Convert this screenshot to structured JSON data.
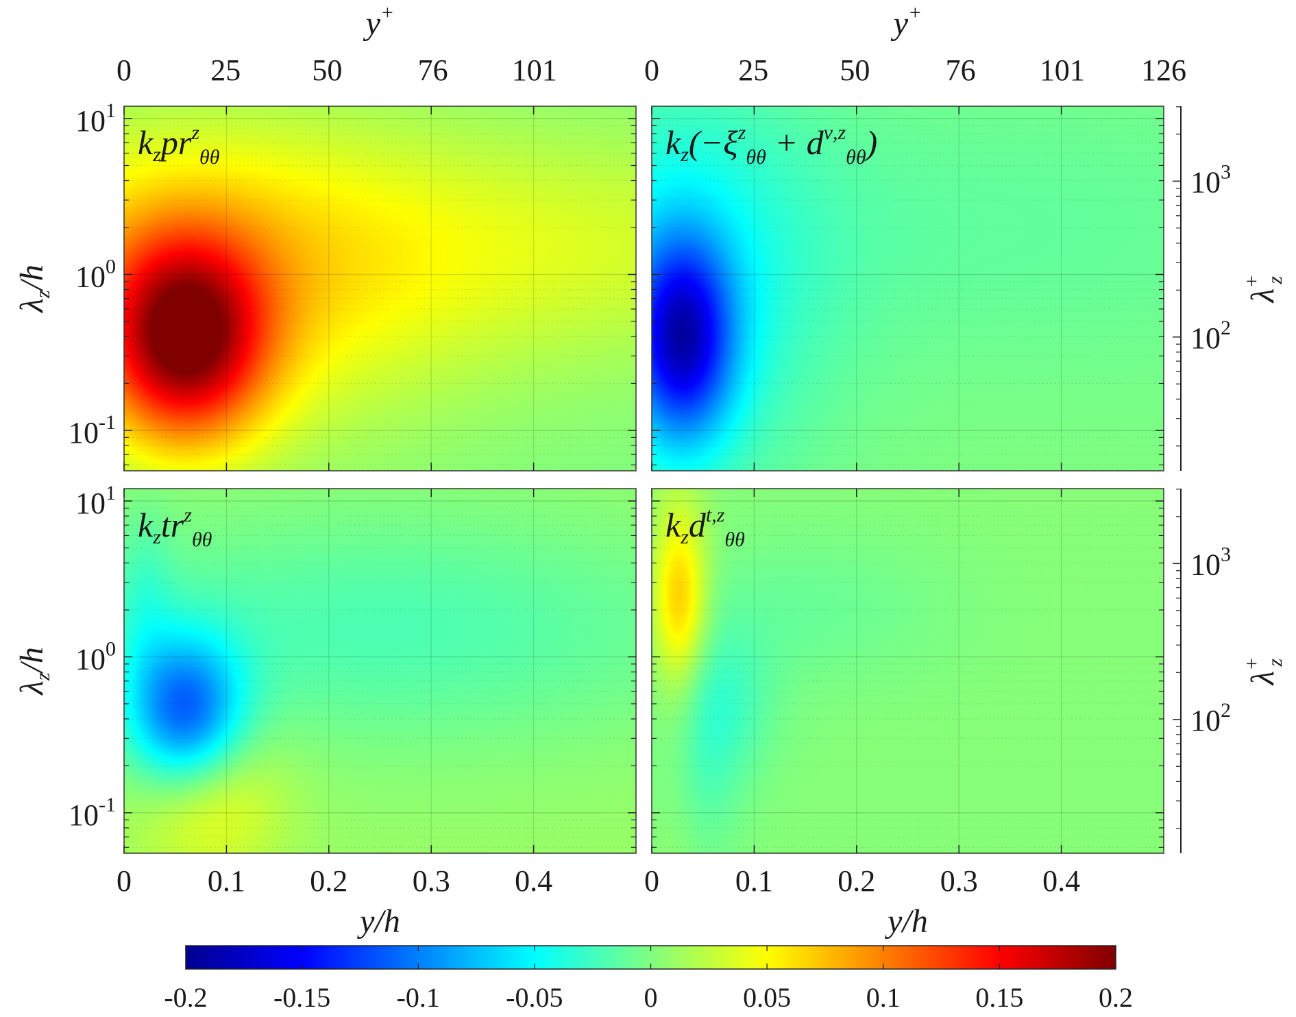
{
  "chart_data": {
    "type": "heatmap",
    "colormap": "jet",
    "color_range": [
      -0.2,
      0.2
    ],
    "x_axis": {
      "label_main": "y",
      "label_sub": "h",
      "range": [
        0,
        0.5
      ],
      "ticks": [
        0,
        0.1,
        0.2,
        0.3,
        0.4
      ],
      "tick_labels": [
        "0",
        "0.1",
        "0.2",
        "0.3",
        "0.4"
      ]
    },
    "top_axis": {
      "label_main": "y",
      "label_sup": "+",
      "ticks": [
        0,
        25,
        50,
        76,
        101,
        126
      ],
      "tick_labels_left": [
        "0",
        "25",
        "50",
        "76",
        "101"
      ],
      "tick_labels_right": [
        "0",
        "25",
        "50",
        "76",
        "101",
        "126"
      ]
    },
    "y_axis": {
      "label_main": "λ",
      "label_sub": "z",
      "label_tail": "/h",
      "scale": "log",
      "range": [
        0.055,
        12
      ],
      "ticks": [
        0.1,
        1,
        10
      ],
      "tick_labels": [
        {
          "base": "10",
          "exp": "-1"
        },
        {
          "base": "10",
          "exp": "0"
        },
        {
          "base": "10",
          "exp": "1"
        }
      ]
    },
    "right_axis": {
      "label_main": "λ",
      "label_sub": "z",
      "label_sup": "+",
      "tick_labels": [
        {
          "base": "10",
          "exp": "2"
        },
        {
          "base": "10",
          "exp": "3"
        }
      ],
      "tick_values": [
        100,
        1000
      ]
    },
    "colorbar": {
      "ticks": [
        -0.2,
        -0.15,
        -0.1,
        -0.05,
        0,
        0.05,
        0.1,
        0.15,
        0.2
      ],
      "tick_labels": [
        "-0.2",
        "-0.15",
        "-0.1",
        "-0.05",
        "0",
        "0.05",
        "0.1",
        "0.15",
        "0.2"
      ]
    },
    "panels": [
      {
        "id": "production",
        "title": {
          "pre": "k",
          "pre_sub": "z",
          "main": "pr",
          "sup": "z",
          "sub": "θθ",
          "tail": ""
        },
        "background": 0.0,
        "features": [
          {
            "y": 0.07,
            "lambda": 0.8,
            "sy": 0.16,
            "sl": 0.75,
            "amp": 0.05
          },
          {
            "y": 0.35,
            "lambda": 1.5,
            "sy": 0.35,
            "sl": 0.55,
            "amp": 0.035
          },
          {
            "y": 0.06,
            "lambda": 0.38,
            "sy": 0.055,
            "sl": 0.45,
            "amp": 0.17
          }
        ]
      },
      {
        "id": "dissipation",
        "title": {
          "pre": "k",
          "pre_sub": "z",
          "main": "(−ξ",
          "sup": "z",
          "sub": "θθ",
          "tail": " + d",
          "tail_sup": "ν,z",
          "tail_sub": "θθ",
          "close": ")"
        },
        "background": 0.0,
        "features": [
          {
            "y": 0.03,
            "lambda": 0.8,
            "sy": 0.09,
            "sl": 0.9,
            "amp": -0.045
          },
          {
            "y": 0.03,
            "lambda": 0.38,
            "sy": 0.035,
            "sl": 0.45,
            "amp": -0.14
          },
          {
            "y": 0.3,
            "lambda": 2.0,
            "sy": 0.3,
            "sl": 0.7,
            "amp": -0.012
          }
        ]
      },
      {
        "id": "transfer",
        "title": {
          "pre": "k",
          "pre_sub": "z",
          "main": "tr",
          "sup": "z",
          "sub": "θθ",
          "tail": ""
        },
        "background": 0.01,
        "features": [
          {
            "y": 0.06,
            "lambda": 0.42,
            "sy": 0.04,
            "sl": 0.35,
            "amp": -0.12
          },
          {
            "y": 0.25,
            "lambda": 1.5,
            "sy": 0.25,
            "sl": 0.55,
            "amp": -0.03
          },
          {
            "y": 0.08,
            "lambda": 0.13,
            "sy": 0.05,
            "sl": 0.35,
            "amp": 0.045
          },
          {
            "y": 0.02,
            "lambda": 2.5,
            "sy": 0.02,
            "sl": 0.4,
            "amp": -0.02
          }
        ]
      },
      {
        "id": "turbulent_diffusion",
        "title": {
          "pre": "k",
          "pre_sub": "z",
          "main": "d",
          "sup": "t,z",
          "sub": "θθ",
          "tail": ""
        },
        "background": 0.003,
        "features": [
          {
            "y": 0.028,
            "lambda": 2.4,
            "sy": 0.018,
            "sl": 0.35,
            "amp": 0.05
          },
          {
            "y": 0.025,
            "lambda": 0.9,
            "sy": 0.02,
            "sl": 0.9,
            "amp": 0.025
          },
          {
            "y": 0.06,
            "lambda": 0.5,
            "sy": 0.04,
            "sl": 0.35,
            "amp": -0.03
          },
          {
            "y": 0.04,
            "lambda": 0.15,
            "sy": 0.03,
            "sl": 0.4,
            "amp": -0.02
          },
          {
            "y": 0.15,
            "lambda": 2.0,
            "sy": 0.1,
            "sl": 0.35,
            "amp": -0.012
          }
        ]
      }
    ]
  }
}
